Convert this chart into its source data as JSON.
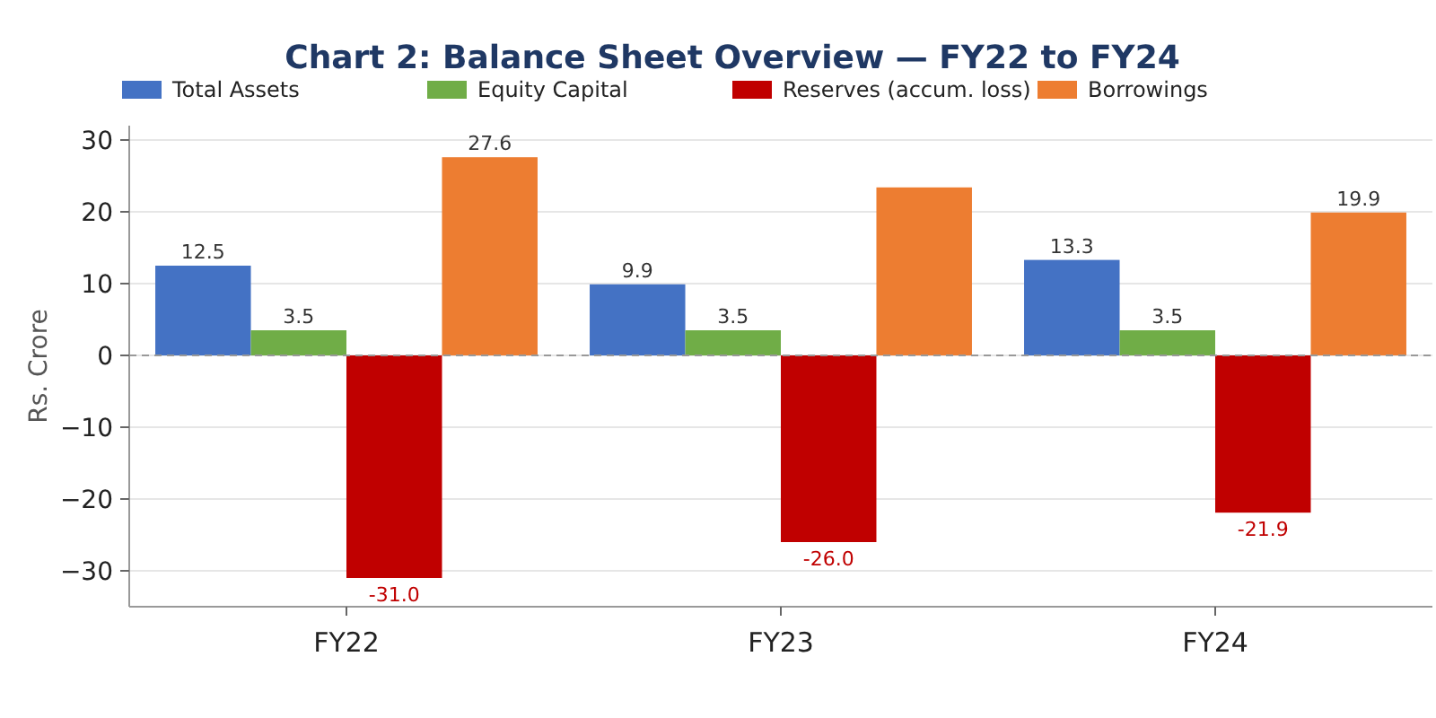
{
  "chart_data": {
    "type": "bar",
    "title": "Chart 2: Balance Sheet Overview — FY22 to FY24",
    "ylabel": "Rs. Crore",
    "categories": [
      "FY22",
      "FY23",
      "FY24"
    ],
    "series": [
      {
        "name": "Total Assets",
        "color": "#4472c4",
        "values": [
          12.5,
          9.9,
          13.3
        ],
        "value_labels": [
          "12.5",
          "9.9",
          "13.3"
        ]
      },
      {
        "name": "Equity Capital",
        "color": "#70ad47",
        "values": [
          3.5,
          3.5,
          3.5
        ],
        "value_labels": [
          "3.5",
          "3.5",
          "3.5"
        ]
      },
      {
        "name": "Reserves (accum. loss)",
        "color": "#c00000",
        "values": [
          -31.0,
          -26.0,
          -21.9
        ],
        "value_labels": [
          "-31.0",
          "-26.0",
          "-21.9"
        ]
      },
      {
        "name": "Borrowings",
        "color": "#ed7d31",
        "values": [
          27.6,
          23.4,
          19.9
        ],
        "value_labels": [
          "27.6",
          null,
          "19.9"
        ]
      }
    ],
    "ylim": [
      -35,
      32
    ],
    "yticks": [
      {
        "value": -30,
        "label": "−30"
      },
      {
        "value": -20,
        "label": "−20"
      },
      {
        "value": -10,
        "label": "−10"
      },
      0,
      10,
      20,
      30
    ],
    "grid": "y",
    "legend": "top",
    "ref_lines": [
      {
        "axis": "y",
        "value": 0,
        "color": "#999999",
        "line_style": "dashed"
      }
    ]
  }
}
